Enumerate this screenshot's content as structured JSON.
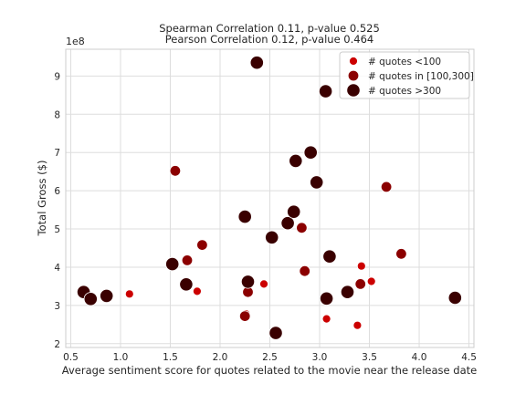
{
  "chart_data": {
    "type": "scatter",
    "title_line1": "Spearman Correlation 0.11, p-value 0.525",
    "title_line2": "Pearson Correlation 0.12, p-value 0.464",
    "xlabel": "Average sentiment score for quotes related to the movie near the release date",
    "ylabel": "Total Gross ($)",
    "y_offset_label": "1e8",
    "xlim": [
      0.45,
      4.55
    ],
    "ylim": [
      1.9,
      9.7
    ],
    "x_ticks": [
      0.5,
      1.0,
      1.5,
      2.0,
      2.5,
      3.0,
      3.5,
      4.0,
      4.5
    ],
    "x_tick_labels": [
      "0.5",
      "1.0",
      "1.5",
      "2.0",
      "2.5",
      "3.0",
      "3.5",
      "4.0",
      "4.5"
    ],
    "y_ticks": [
      2,
      3,
      4,
      5,
      6,
      7,
      8,
      9
    ],
    "y_tick_labels": [
      "2",
      "3",
      "4",
      "5",
      "6",
      "7",
      "8",
      "9"
    ],
    "grid": true,
    "legend_position": "upper right",
    "series": [
      {
        "name": "# quotes <100",
        "color": "#cc0000",
        "size": "small",
        "points": [
          [
            1.09,
            3.3
          ],
          [
            1.77,
            3.37
          ],
          [
            2.26,
            2.78
          ],
          [
            2.44,
            3.56
          ],
          [
            3.07,
            2.65
          ],
          [
            3.38,
            2.48
          ],
          [
            3.42,
            4.03
          ],
          [
            3.52,
            3.63
          ]
        ]
      },
      {
        "name": "# quotes in [100,300]",
        "color": "#8b0000",
        "size": "medium",
        "points": [
          [
            1.55,
            6.52
          ],
          [
            1.67,
            4.18
          ],
          [
            1.82,
            4.58
          ],
          [
            2.25,
            2.72
          ],
          [
            2.28,
            3.35
          ],
          [
            2.82,
            5.03
          ],
          [
            2.85,
            3.9
          ],
          [
            3.41,
            3.56
          ],
          [
            3.67,
            6.1
          ],
          [
            3.82,
            4.35
          ]
        ]
      },
      {
        "name": "# quotes >300",
        "color": "#3a0000",
        "size": "large",
        "points": [
          [
            0.63,
            3.35
          ],
          [
            0.7,
            3.17
          ],
          [
            0.86,
            3.25
          ],
          [
            1.52,
            4.08
          ],
          [
            1.66,
            3.55
          ],
          [
            2.25,
            5.32
          ],
          [
            2.28,
            3.62
          ],
          [
            2.37,
            9.35
          ],
          [
            2.52,
            4.78
          ],
          [
            2.56,
            2.28
          ],
          [
            2.68,
            5.15
          ],
          [
            2.74,
            5.45
          ],
          [
            2.76,
            6.78
          ],
          [
            2.91,
            7.0
          ],
          [
            2.97,
            6.22
          ],
          [
            3.06,
            8.6
          ],
          [
            3.07,
            3.18
          ],
          [
            3.1,
            4.28
          ],
          [
            3.28,
            3.35
          ],
          [
            4.36,
            3.2
          ]
        ]
      }
    ]
  },
  "colors": {
    "small": "#cc0000",
    "medium": "#8b0000",
    "large": "#3a0000",
    "grid": "#dddddd",
    "axis": "#cccccc"
  }
}
